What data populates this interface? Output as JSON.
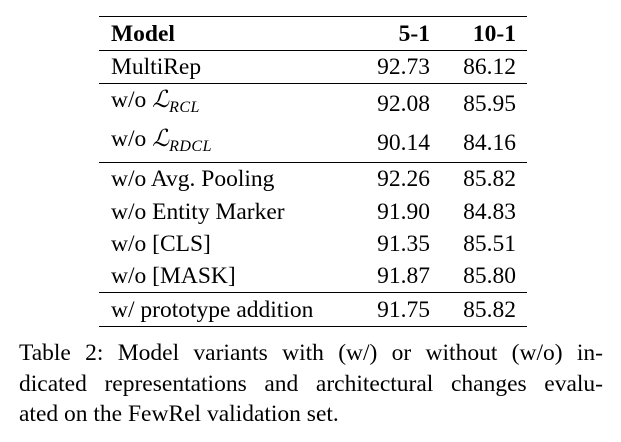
{
  "table": {
    "headers": {
      "model": "Model",
      "col1": "5-1",
      "col2": "10-1"
    },
    "rows": [
      {
        "model": "MultiRep",
        "v1": "92.73",
        "v2": "86.12"
      },
      {
        "model_prefix": "w/o ",
        "loss_symbol": "ℒ",
        "loss_subscript": "RCL",
        "v1": "92.08",
        "v2": "85.95"
      },
      {
        "model_prefix": "w/o ",
        "loss_symbol": "ℒ",
        "loss_subscript": "RDCL",
        "v1": "90.14",
        "v2": "84.16"
      },
      {
        "model": "w/o Avg. Pooling",
        "v1": "92.26",
        "v2": "85.82"
      },
      {
        "model": "w/o Entity Marker",
        "v1": "91.90",
        "v2": "84.83"
      },
      {
        "model": "w/o [CLS]",
        "v1": "91.35",
        "v2": "85.51"
      },
      {
        "model": "w/o [MASK]",
        "v1": "91.87",
        "v2": "85.80"
      },
      {
        "model": "w/ prototype addition",
        "v1": "91.75",
        "v2": "85.82"
      }
    ]
  },
  "caption": {
    "line1": "Table 2: Model variants with (w/) or without (w/o) in-",
    "line2": "dicated representations and architectural changes evalu-",
    "line3": "ated on the FewRel validation set."
  }
}
